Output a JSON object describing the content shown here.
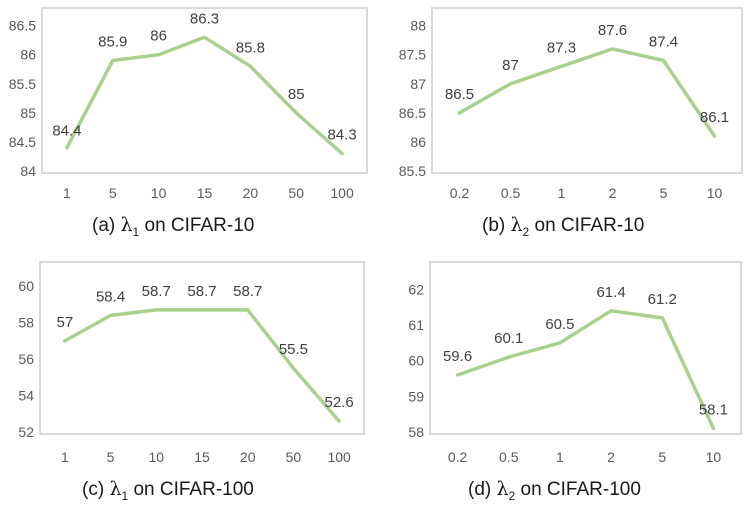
{
  "chart_data": [
    {
      "type": "line",
      "categories": [
        "1",
        "5",
        "10",
        "15",
        "20",
        "50",
        "100"
      ],
      "values": [
        84.4,
        85.9,
        86,
        86.3,
        85.8,
        85,
        84.3
      ],
      "data_labels": [
        "84.4",
        "85.9",
        "86",
        "86.3",
        "85.8",
        "85",
        "84.3"
      ],
      "yticks": [
        "84",
        "84.5",
        "85",
        "85.5",
        "86",
        "86.5"
      ],
      "ylim": [
        84,
        86.7
      ],
      "caption": {
        "prefix": "(a) ",
        "symbol": "λ",
        "subscript": "1",
        "suffix": " on CIFAR-10"
      },
      "line_color": "#a9d18e",
      "grid": false
    },
    {
      "type": "line",
      "categories": [
        "0.2",
        "0.5",
        "1",
        "2",
        "5",
        "10"
      ],
      "values": [
        86.5,
        87,
        87.3,
        87.6,
        87.4,
        86.1
      ],
      "data_labels": [
        "86.5",
        "87",
        "87.3",
        "87.6",
        "87.4",
        "86.1"
      ],
      "yticks": [
        "85.5",
        "86",
        "86.5",
        "87",
        "87.5",
        "88"
      ],
      "ylim": [
        85.5,
        88.2
      ],
      "caption": {
        "prefix": "(b) ",
        "symbol": "λ",
        "subscript": "2",
        "suffix": " on CIFAR-10"
      },
      "line_color": "#a9d18e",
      "grid": false
    },
    {
      "type": "line",
      "categories": [
        "1",
        "5",
        "10",
        "15",
        "20",
        "50",
        "100"
      ],
      "values": [
        57,
        58.4,
        58.7,
        58.7,
        58.7,
        55.5,
        52.6
      ],
      "data_labels": [
        "57",
        "58.4",
        "58.7",
        "58.7",
        "58.7",
        "55.5",
        "52.6"
      ],
      "yticks": [
        "52",
        "54",
        "56",
        "58",
        "60"
      ],
      "ylim": [
        52,
        61
      ],
      "caption": {
        "prefix": "(c) ",
        "symbol": "λ",
        "subscript": "1",
        "suffix": " on CIFAR-100"
      },
      "line_color": "#a9d18e",
      "grid": false
    },
    {
      "type": "line",
      "categories": [
        "0.2",
        "0.5",
        "1",
        "2",
        "5",
        "10"
      ],
      "values": [
        59.6,
        60.1,
        60.5,
        61.4,
        61.2,
        58.1
      ],
      "data_labels": [
        "59.6",
        "60.1",
        "60.5",
        "61.4",
        "61.2",
        "58.1"
      ],
      "yticks": [
        "58",
        "59",
        "60",
        "61",
        "62"
      ],
      "ylim": [
        58,
        62.6
      ],
      "caption": {
        "prefix": "(d) ",
        "symbol": "λ",
        "subscript": "2",
        "suffix": " on CIFAR-100"
      },
      "line_color": "#a9d18e",
      "grid": false
    }
  ]
}
